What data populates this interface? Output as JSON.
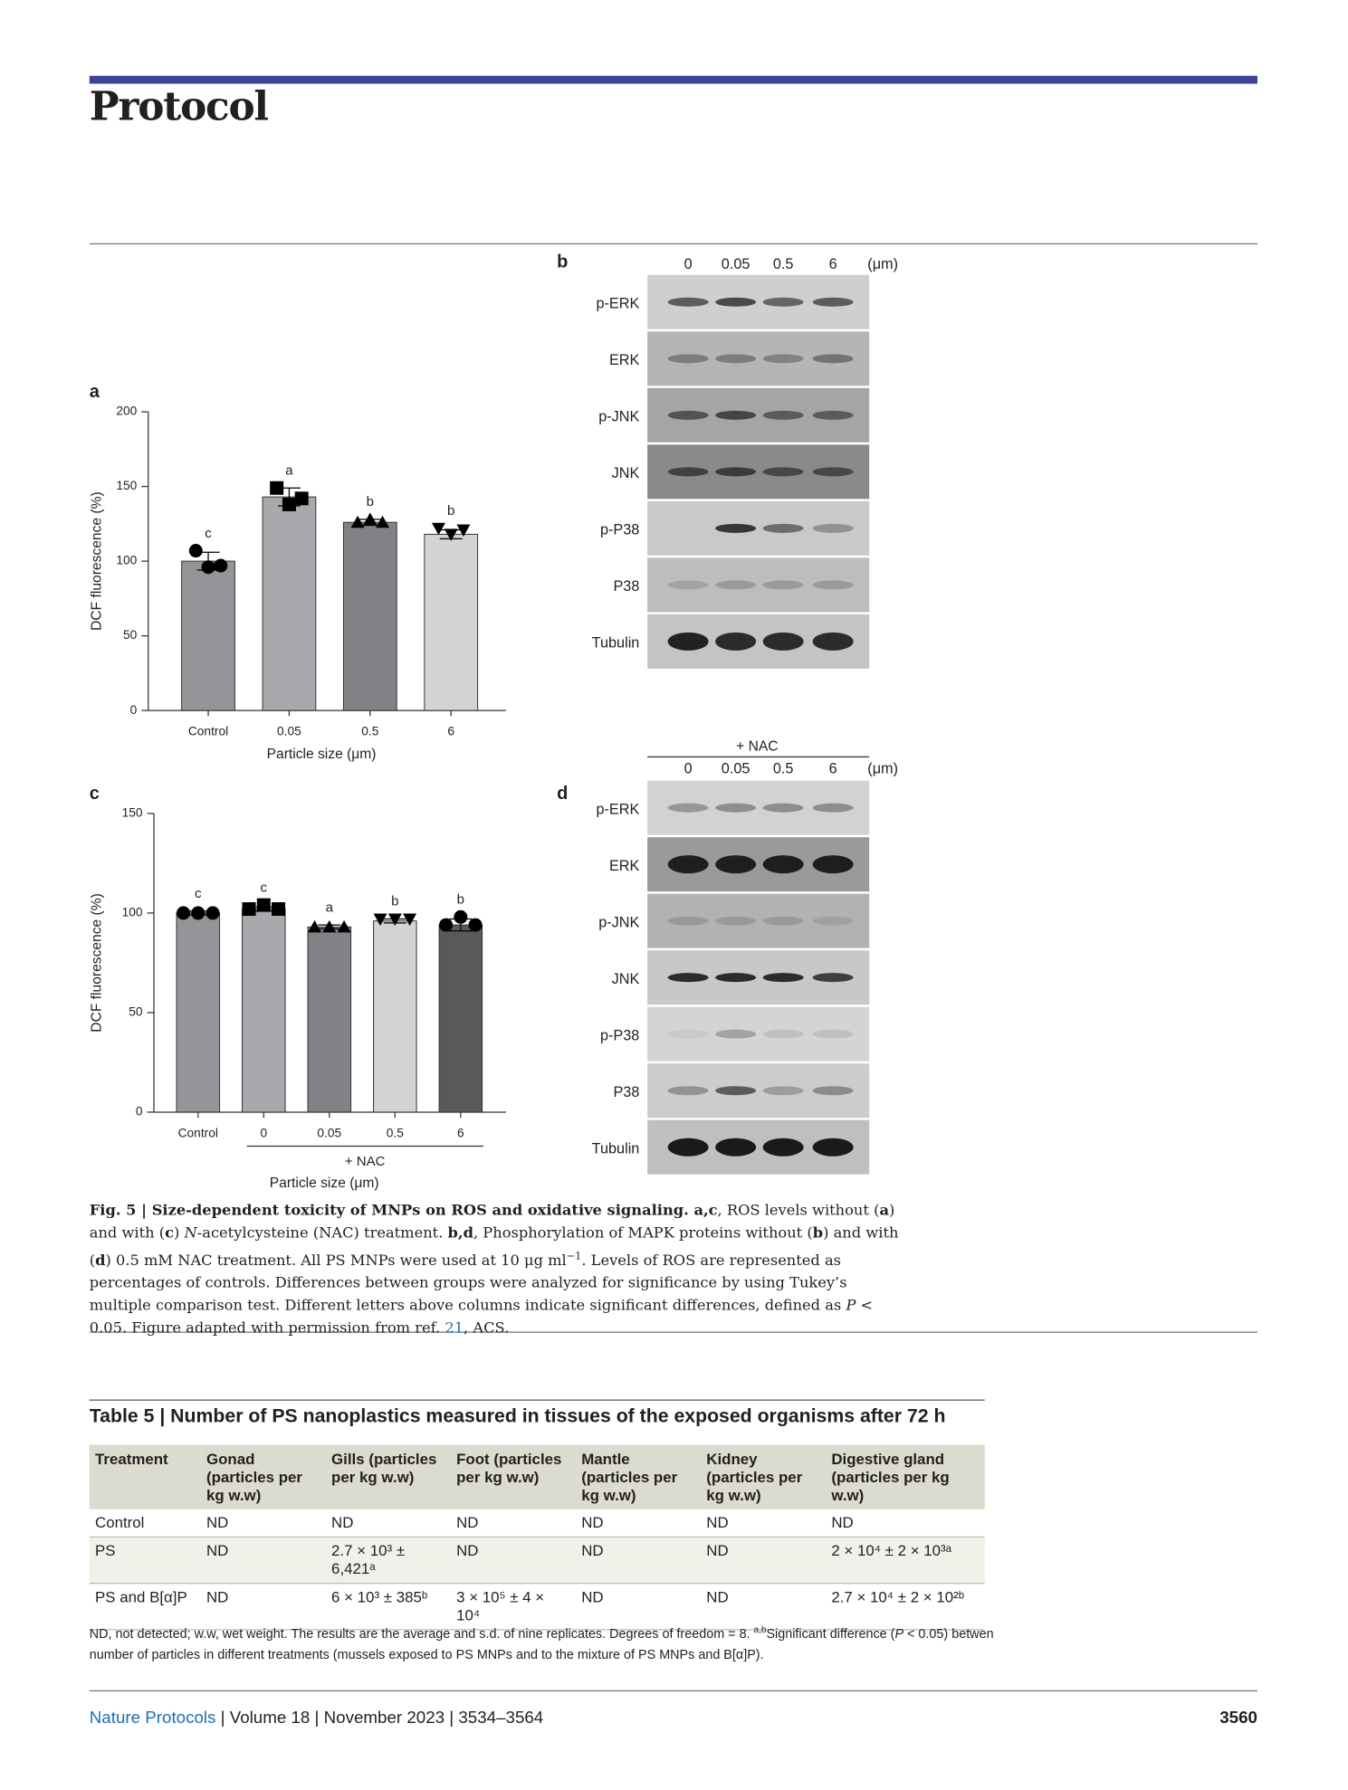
{
  "header": {
    "section": "Protocol"
  },
  "chart_data": [
    {
      "type": "bar",
      "panel": "a",
      "categories": [
        "Control",
        "0.05",
        "0.5",
        "6"
      ],
      "values": [
        100,
        143,
        126,
        118
      ],
      "errors": [
        6,
        6,
        2,
        3
      ],
      "points": [
        [
          107,
          96,
          97
        ],
        [
          149,
          138,
          142
        ],
        [
          126,
          128,
          126
        ],
        [
          122,
          118,
          121
        ]
      ],
      "markers": [
        "circle",
        "square",
        "triangle",
        "triangle-down"
      ],
      "letters": [
        "c",
        "a",
        "b",
        "b"
      ],
      "colors": [
        "#939598",
        "#a7a9ac",
        "#808285",
        "#d1d3d4"
      ],
      "ylabel": "DCF fluorescence (%)",
      "xlabel": "Particle size (μm)",
      "ylim": [
        0,
        200
      ],
      "yticks": [
        0,
        50,
        100,
        150,
        200
      ]
    },
    {
      "type": "bar",
      "panel": "c",
      "categories": [
        "Control",
        "0",
        "0.05",
        "0.5",
        "6"
      ],
      "values": [
        100,
        102,
        93,
        96,
        94
      ],
      "errors": [
        1,
        1,
        1,
        1,
        3
      ],
      "points": [
        [
          100,
          100,
          100
        ],
        [
          102,
          104,
          102
        ],
        [
          93,
          93,
          93
        ],
        [
          97,
          97,
          97
        ],
        [
          94,
          98,
          94
        ]
      ],
      "markers": [
        "circle",
        "square",
        "triangle",
        "triangle-down",
        "circle"
      ],
      "letters": [
        "c",
        "c",
        "a",
        "b",
        "b"
      ],
      "colors": [
        "#939598",
        "#a7a9ac",
        "#808285",
        "#d1d3d4",
        "#58595b"
      ],
      "group_label": "+ NAC",
      "ylabel": "DCF fluorescence (%)",
      "xlabel": "Particle size (μm)",
      "ylim": [
        0,
        150
      ],
      "yticks": [
        0,
        50,
        100,
        150
      ]
    }
  ],
  "blots": [
    {
      "panel": "b",
      "columns": [
        "0",
        "0.05",
        "0.5",
        "6"
      ],
      "unit": "(μm)",
      "rows": [
        "p-ERK",
        "ERK",
        "p-JNK",
        "JNK",
        "p-P38",
        "P38",
        "Tubulin"
      ]
    },
    {
      "panel": "d",
      "treatment": "+ NAC",
      "columns": [
        "0",
        "0.05",
        "0.5",
        "6"
      ],
      "unit": "(μm)",
      "rows": [
        "p-ERK",
        "ERK",
        "p-JNK",
        "JNK",
        "p-P38",
        "P38",
        "Tubulin"
      ]
    }
  ],
  "caption": [
    "Fig. 5 | Size-dependent toxicity of MNPs on ROS and oxidative signaling. a,c",
    ", ROS levels without (",
    "a",
    ") and with (",
    "c",
    ") ",
    "N",
    "-acetylcysteine (NAC) treatment. ",
    "b,d",
    ", Phosphorylation of MAPK proteins without (",
    "b",
    ") and with (",
    "d",
    ") 0.5 mM NAC treatment. All PS MNPs were used at 10 μg ml",
    "−1",
    ". Levels of ROS are represented as percentages of controls. Differences between groups were analyzed for significance by using Tukey’s multiple comparison test. Different letters above columns indicate significant differences, defined as ",
    "P",
    " < 0.05. Figure adapted with permission from ref. ",
    "21",
    ", ACS."
  ],
  "table": {
    "title": "Table 5 | Number of PS nanoplastics measured in tissues of the exposed organisms after 72 h",
    "header": [
      "Treatment",
      "Gonad (particles per kg w.w)",
      "Gills (particles per kg w.w)",
      "Foot (particles per kg w.w)",
      "Mantle (particles per kg w.w)",
      "Kidney (particles per kg w.w)",
      "Digestive gland (particles per kg w.w)"
    ],
    "rows": [
      [
        "Control",
        "ND",
        "ND",
        "ND",
        "ND",
        "ND",
        "ND"
      ],
      [
        "PS",
        "ND",
        "2.7 × 10³ ± 6,421ᵃ",
        "ND",
        "ND",
        "ND",
        "2 × 10⁴ ± 2 × 10³ᵃ"
      ],
      [
        "PS and B[α]P",
        "ND",
        "6 × 10³ ± 385ᵇ",
        "3 × 10⁵ ± 4 × 10⁴",
        "ND",
        "ND",
        "2.7 × 10⁴ ± 2 × 10²ᵇ"
      ]
    ],
    "footnote": [
      "ND, not detected; w.w, wet weight. The results are the average and s.d. of nine replicates. Degrees of freedom = 8. ",
      "a,b",
      "Significant difference (",
      "P",
      " < 0.05) betwen number of particles in different treatments (mussels exposed to PS MNPs and to the mixture of PS MNPs and B[α]P)."
    ]
  },
  "footer": {
    "journal": "Nature Protocols",
    "details": " | Volume 18 | November 2023 | 3534–3564",
    "page": "3560"
  }
}
